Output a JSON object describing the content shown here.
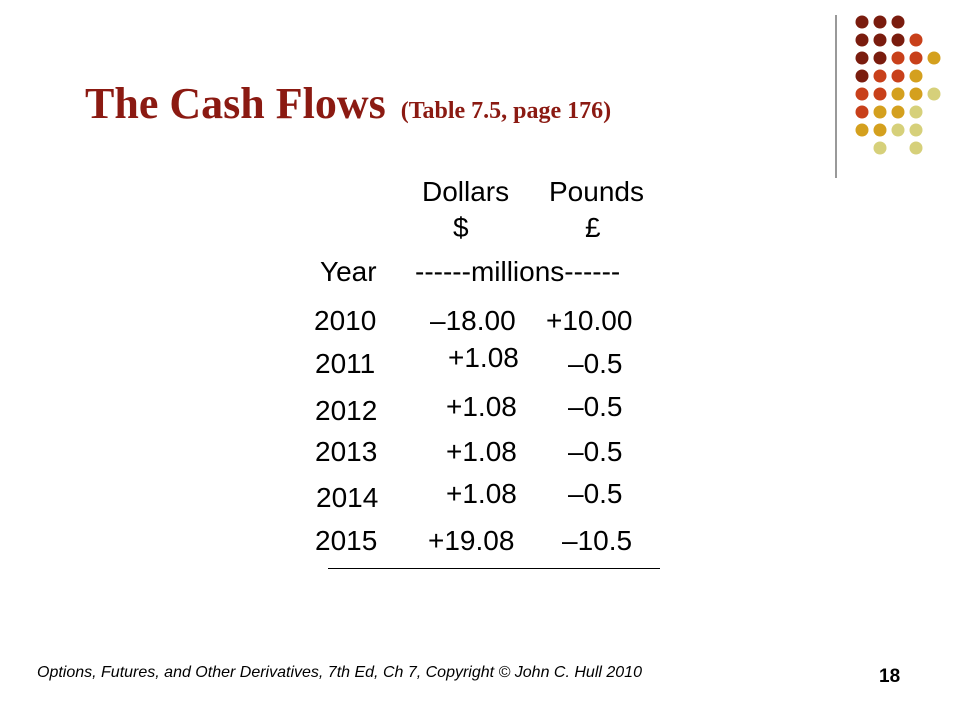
{
  "slide": {
    "title": "The Cash Flows",
    "subtitle": "(Table 7.5, page 176)",
    "footer": "Options, Futures, and Other Derivatives, 7th Ed, Ch 7, Copyright © John C. Hull 2010",
    "page_number": "18"
  },
  "table": {
    "col_dollars": "Dollars",
    "col_dollars_symbol": "$",
    "col_pounds": "Pounds",
    "col_pounds_symbol": "£",
    "year_label": "Year",
    "units_label": "------millions------",
    "rows": [
      {
        "year": "2010",
        "dollars": "–18.00",
        "pounds": "+10.00"
      },
      {
        "year": "2011",
        "dollars": "+1.08",
        "pounds": "–0.5"
      },
      {
        "year": "2012",
        "dollars": "+1.08",
        "pounds": "–0.5"
      },
      {
        "year": "2013",
        "dollars": "+1.08",
        "pounds": "–0.5"
      },
      {
        "year": "2014",
        "dollars": "+1.08",
        "pounds": "–0.5"
      },
      {
        "year": "2015",
        "dollars": "+19.08",
        "pounds": "–10.5"
      }
    ]
  },
  "colors": {
    "title": "#8b1a12",
    "dot_dark": "#7a1c0e",
    "dot_orange": "#c8401a",
    "dot_gold": "#d4a01e",
    "dot_khaki": "#d6d07a"
  }
}
